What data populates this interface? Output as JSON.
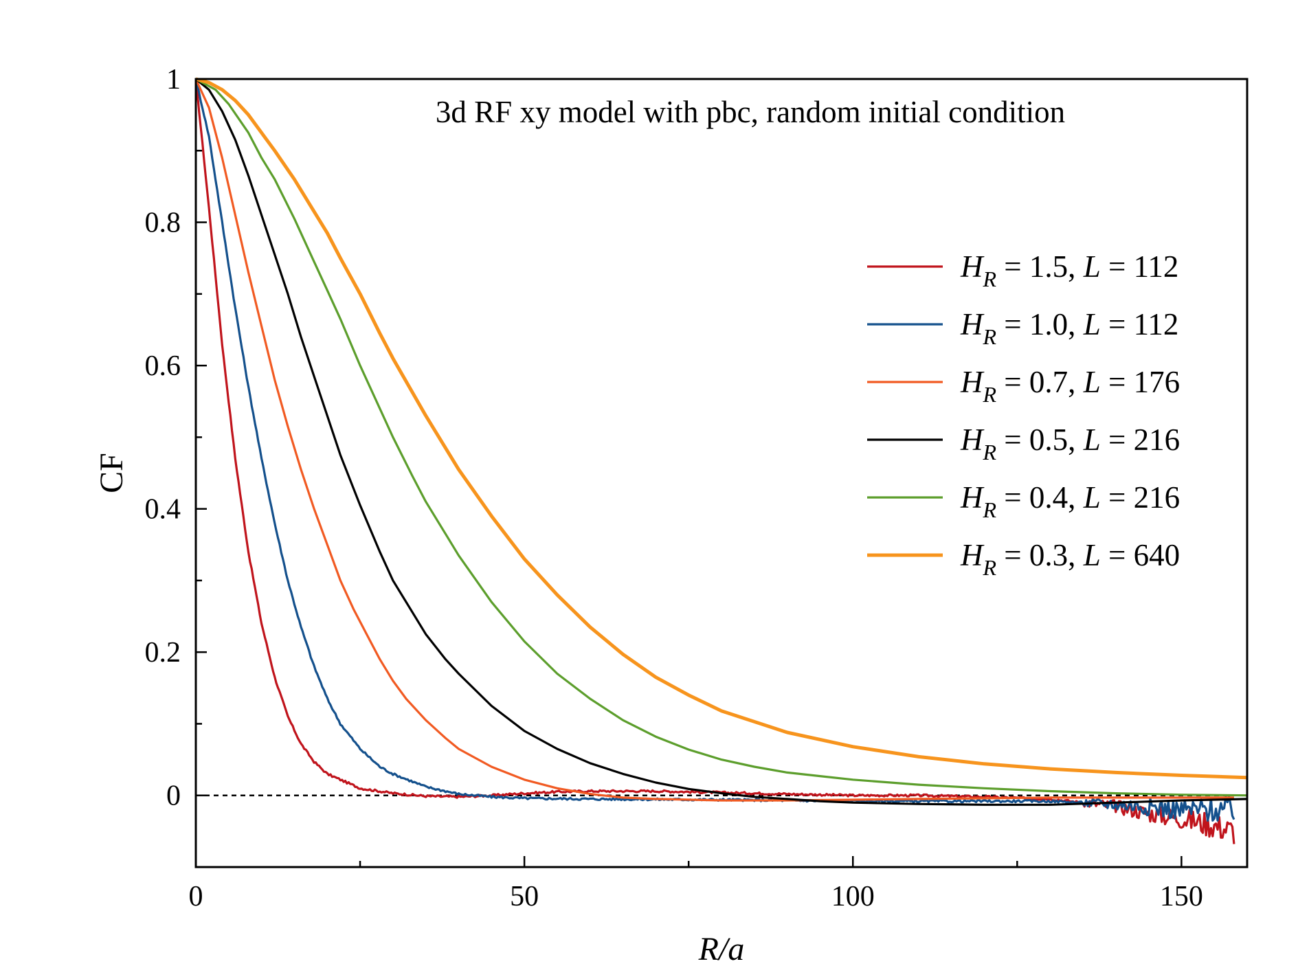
{
  "chart_data": {
    "type": "line",
    "title": "3d RF xy model with pbc, random initial condition",
    "xlabel": "R/a",
    "ylabel": "CF",
    "xlim": [
      0,
      160
    ],
    "ylim": [
      -0.1,
      1
    ],
    "xticks": [
      0,
      50,
      100,
      150
    ],
    "xtick_labels": [
      "0",
      "50",
      "100",
      "150"
    ],
    "xminor": [
      25,
      75,
      125
    ],
    "yticks": [
      0,
      0.2,
      0.4,
      0.6,
      0.8,
      1
    ],
    "ytick_labels": [
      "0",
      "0.2",
      "0.4",
      "0.6",
      "0.8",
      "1"
    ],
    "yminor": [
      0.1,
      0.3,
      0.5,
      0.7,
      0.9
    ],
    "reference_line": {
      "y": 0,
      "style": "dotted"
    },
    "legend_position": "right",
    "series": [
      {
        "name": "H_R = 1.5, L = 112",
        "label_var": "H",
        "label_sub": "R",
        "label_hval": " = 1.5, ",
        "label_lvar": "L",
        "label_lval": " = 112",
        "color": "#c0141c",
        "noisy": true,
        "x": [
          0,
          2,
          4,
          6,
          8,
          10,
          12,
          14,
          16,
          18,
          20,
          25,
          30,
          35,
          40,
          45,
          50,
          55,
          60,
          70,
          80,
          90,
          100,
          110,
          120,
          130,
          140,
          145,
          150,
          155,
          158
        ],
        "y": [
          1.0,
          0.82,
          0.63,
          0.47,
          0.34,
          0.24,
          0.165,
          0.11,
          0.072,
          0.047,
          0.03,
          0.01,
          0.003,
          -0.001,
          -0.002,
          0.0,
          0.003,
          0.005,
          0.006,
          0.006,
          0.004,
          0.002,
          0.0,
          0.0,
          -0.002,
          -0.005,
          -0.015,
          -0.025,
          -0.032,
          -0.042,
          -0.05
        ]
      },
      {
        "name": "H_R = 1.0, L = 112",
        "label_var": "H",
        "label_sub": "R",
        "label_hval": " = 1.0, ",
        "label_lvar": "L",
        "label_lval": " = 112",
        "color": "#14508c",
        "noisy": true,
        "x": [
          0,
          2,
          4,
          6,
          8,
          10,
          12,
          14,
          16,
          18,
          20,
          22,
          25,
          28,
          30,
          35,
          40,
          45,
          50,
          60,
          80,
          100,
          120,
          130,
          140,
          145,
          150,
          155,
          158
        ],
        "y": [
          1.0,
          0.92,
          0.8,
          0.68,
          0.57,
          0.47,
          0.38,
          0.3,
          0.235,
          0.18,
          0.135,
          0.1,
          0.065,
          0.04,
          0.03,
          0.012,
          0.002,
          -0.002,
          -0.004,
          -0.005,
          -0.006,
          -0.008,
          -0.008,
          -0.008,
          -0.012,
          -0.016,
          -0.02,
          -0.02,
          -0.02
        ]
      },
      {
        "name": "H_R = 0.7, L = 176",
        "label_var": "H",
        "label_sub": "R",
        "label_hval": " = 0.7, ",
        "label_lvar": "L",
        "label_lval": " = 176",
        "color": "#f15a22",
        "noisy": false,
        "x": [
          0,
          2,
          4,
          6,
          8,
          10,
          12,
          14,
          16,
          18,
          20,
          22,
          24,
          26,
          28,
          30,
          32,
          35,
          38,
          40,
          45,
          50,
          55,
          60,
          65,
          70,
          80,
          90,
          100,
          110,
          120,
          130,
          140,
          150,
          158
        ],
        "y": [
          1.0,
          0.96,
          0.89,
          0.81,
          0.73,
          0.655,
          0.58,
          0.515,
          0.455,
          0.4,
          0.35,
          0.3,
          0.26,
          0.225,
          0.19,
          0.16,
          0.135,
          0.105,
          0.08,
          0.065,
          0.04,
          0.022,
          0.01,
          0.002,
          -0.003,
          -0.005,
          -0.007,
          -0.007,
          -0.006,
          -0.005,
          -0.004,
          -0.003,
          -0.003,
          -0.003,
          -0.003
        ]
      },
      {
        "name": "H_R = 0.5, L = 216",
        "label_var": "H",
        "label_sub": "R",
        "label_hval": " = 0.5, ",
        "label_lvar": "L",
        "label_lval": " = 216",
        "color": "#000000",
        "noisy": false,
        "x": [
          0,
          2,
          4,
          6,
          8,
          10,
          12,
          14,
          16,
          18,
          20,
          22,
          25,
          28,
          30,
          33,
          35,
          38,
          40,
          45,
          50,
          55,
          60,
          65,
          70,
          75,
          80,
          85,
          90,
          95,
          100,
          110,
          120,
          130,
          140,
          150,
          160
        ],
        "y": [
          1.0,
          0.985,
          0.955,
          0.915,
          0.865,
          0.81,
          0.755,
          0.7,
          0.64,
          0.585,
          0.53,
          0.475,
          0.405,
          0.34,
          0.3,
          0.255,
          0.225,
          0.19,
          0.17,
          0.125,
          0.09,
          0.065,
          0.045,
          0.03,
          0.018,
          0.009,
          0.003,
          -0.002,
          -0.005,
          -0.008,
          -0.01,
          -0.012,
          -0.013,
          -0.013,
          -0.01,
          -0.007,
          -0.005
        ]
      },
      {
        "name": "H_R = 0.4, L = 216",
        "label_var": "H",
        "label_sub": "R",
        "label_hval": " = 0.4, ",
        "label_lvar": "L",
        "label_lval": " = 216",
        "color": "#5c9e2c",
        "noisy": false,
        "x": [
          0,
          3,
          5,
          8,
          10,
          12,
          15,
          18,
          20,
          22,
          25,
          28,
          30,
          33,
          35,
          38,
          40,
          45,
          50,
          55,
          60,
          65,
          70,
          75,
          80,
          85,
          90,
          95,
          100,
          110,
          120,
          130,
          140,
          150,
          160
        ],
        "y": [
          1.0,
          0.985,
          0.965,
          0.925,
          0.89,
          0.86,
          0.805,
          0.745,
          0.705,
          0.665,
          0.6,
          0.54,
          0.5,
          0.445,
          0.41,
          0.365,
          0.335,
          0.27,
          0.215,
          0.17,
          0.135,
          0.105,
          0.082,
          0.064,
          0.05,
          0.04,
          0.032,
          0.027,
          0.022,
          0.015,
          0.01,
          0.006,
          0.003,
          0.001,
          0.0
        ]
      },
      {
        "name": "H_R = 0.3, L = 640",
        "label_var": "H",
        "label_sub": "R",
        "label_hval": " = 0.3, ",
        "label_lvar": "L",
        "label_lval": " = 640",
        "color": "#f7941d",
        "noisy": false,
        "x": [
          0,
          2,
          4,
          6,
          8,
          10,
          12,
          15,
          18,
          20,
          22,
          25,
          28,
          30,
          35,
          40,
          45,
          50,
          55,
          60,
          65,
          70,
          75,
          80,
          90,
          100,
          110,
          120,
          130,
          140,
          150,
          160
        ],
        "y": [
          1.0,
          0.995,
          0.985,
          0.97,
          0.95,
          0.925,
          0.9,
          0.86,
          0.815,
          0.785,
          0.75,
          0.7,
          0.645,
          0.61,
          0.53,
          0.455,
          0.39,
          0.33,
          0.28,
          0.235,
          0.197,
          0.165,
          0.14,
          0.118,
          0.088,
          0.068,
          0.054,
          0.044,
          0.037,
          0.032,
          0.028,
          0.025
        ]
      }
    ]
  }
}
